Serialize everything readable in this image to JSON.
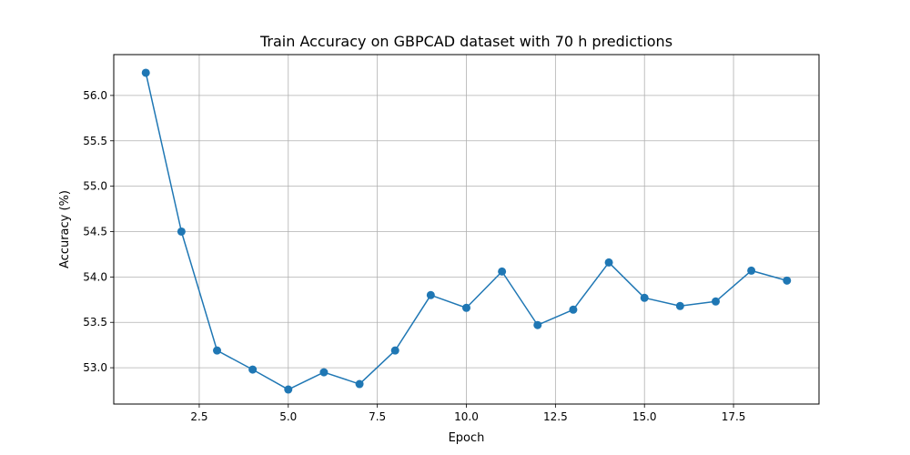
{
  "chart_data": {
    "type": "line",
    "title": "Train Accuracy on GBPCAD dataset with 70 h predictions",
    "xlabel": "Epoch",
    "ylabel": "Accuracy (%)",
    "xlim": [
      0.1,
      19.9
    ],
    "ylim": [
      52.6,
      56.45
    ],
    "grid": true,
    "x_ticks": [
      2.5,
      5.0,
      7.5,
      10.0,
      12.5,
      15.0,
      17.5
    ],
    "x_tick_labels": [
      "2.5",
      "5.0",
      "7.5",
      "10.0",
      "12.5",
      "15.0",
      "17.5"
    ],
    "y_ticks": [
      53.0,
      53.5,
      54.0,
      54.5,
      55.0,
      55.5,
      56.0
    ],
    "y_tick_labels": [
      "53.0",
      "53.5",
      "54.0",
      "54.5",
      "55.0",
      "55.5",
      "56.0"
    ],
    "series": [
      {
        "name": "Train Accuracy",
        "color": "#1f77b4",
        "marker": "circle",
        "x": [
          1,
          2,
          3,
          4,
          5,
          6,
          7,
          8,
          9,
          10,
          11,
          12,
          13,
          14,
          15,
          16,
          17,
          18,
          19
        ],
        "values": [
          56.25,
          54.5,
          53.19,
          52.98,
          52.76,
          52.95,
          52.82,
          53.19,
          53.8,
          53.66,
          54.06,
          53.47,
          53.64,
          54.16,
          53.77,
          53.68,
          53.73,
          54.07,
          53.96
        ]
      }
    ]
  }
}
